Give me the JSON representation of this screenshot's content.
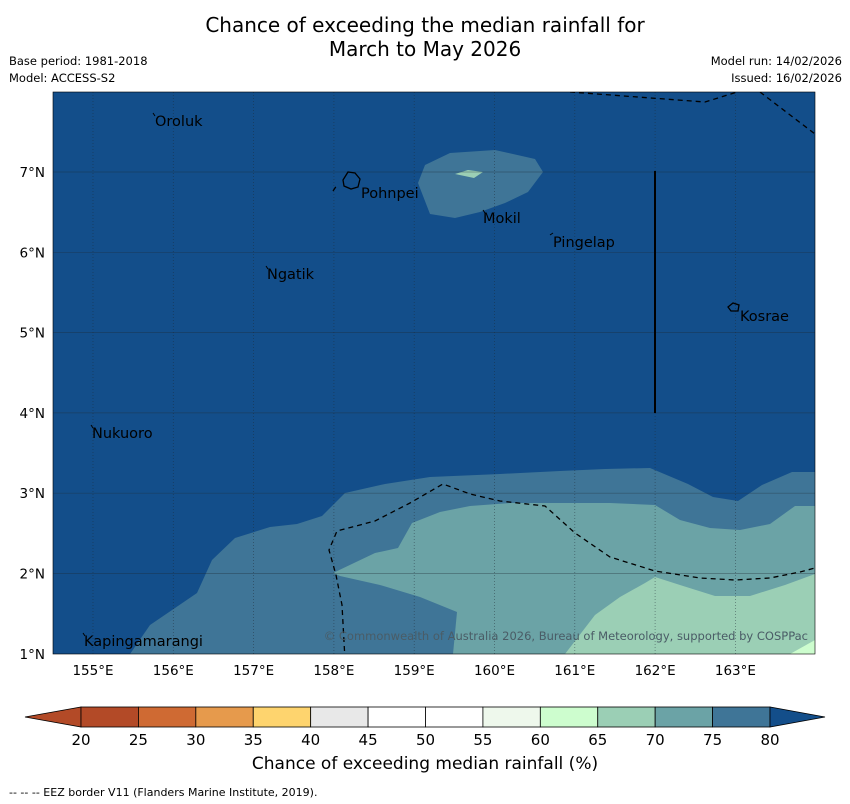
{
  "header": {
    "title_line1": "Chance of exceeding the median rainfall for",
    "title_line2": "March to May 2026",
    "base_period": "Base period: 1981-2018",
    "model": "Model: ACCESS-S2",
    "model_run": "Model run: 14/02/2026",
    "issued": "Issued: 16/02/2026"
  },
  "map": {
    "lon_ticks": [
      "155°E",
      "156°E",
      "157°E",
      "158°E",
      "159°E",
      "160°E",
      "161°E",
      "162°E",
      "163°E"
    ],
    "lat_ticks": [
      "7°N",
      "6°N",
      "5°N",
      "4°N",
      "3°N",
      "2°N",
      "1°N"
    ],
    "places": [
      "Oroluk",
      "Pohnpei",
      "Mokil",
      "Pingelap",
      "Ngatik",
      "Kosrae",
      "Nukuoro",
      "Kapingamarangi"
    ],
    "copyright": "© Commonwealth of Australia 2026, Bureau of Meteorology, supported by COSPPac"
  },
  "colorbar": {
    "ticks": [
      "20",
      "25",
      "30",
      "35",
      "40",
      "45",
      "50",
      "55",
      "60",
      "65",
      "70",
      "75",
      "80"
    ],
    "colors": [
      "#b34a27",
      "#cf6a33",
      "#e69a4c",
      "#fed46e",
      "#e8e8e8",
      "#ffffff",
      "#ffffff",
      "#eef8ec",
      "#cdfdce",
      "#9bcfb5",
      "#6ba3a6",
      "#3f7597",
      "#134e8a"
    ],
    "label": "Chance of exceeding median rainfall (%)"
  },
  "footer": "--  --  -- EEZ border V11 (Flanders Marine Institute, 2019)."
}
